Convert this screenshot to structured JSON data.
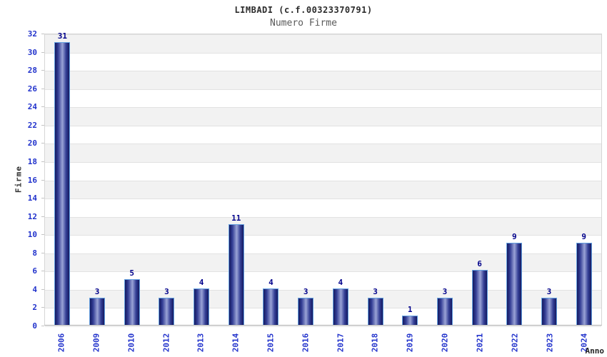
{
  "header": {
    "title": "LIMBADI (c.f.00323370791)",
    "subtitle": "Numero Firme"
  },
  "chart_data": {
    "type": "bar",
    "title": "LIMBADI (c.f.00323370791)",
    "subtitle": "Numero Firme",
    "xlabel": "Anno",
    "ylabel": "Firme",
    "categories": [
      "2006",
      "2009",
      "2010",
      "2012",
      "2013",
      "2014",
      "2015",
      "2016",
      "2017",
      "2018",
      "2019",
      "2020",
      "2021",
      "2022",
      "2023",
      "2024"
    ],
    "values": [
      31,
      3,
      5,
      3,
      4,
      11,
      4,
      3,
      4,
      3,
      1,
      3,
      6,
      9,
      3,
      9
    ],
    "ylim": [
      0,
      32
    ],
    "ytick_step": 2,
    "grid": true,
    "band_fill": true,
    "legend": "none",
    "colors": {
      "bar_dark": "#141a60",
      "bar_mid": "#333e95",
      "bar_highlight": "#9aa3d6",
      "bar_border": "#64a0e0",
      "value_label": "#00008b",
      "axis_tick_text": "#2233cc",
      "band_gray": "#f2f2f2",
      "gridline": "#e2e2e2",
      "title_text": "#2b2b2b",
      "subtitle_text": "#5a5a5a"
    }
  }
}
